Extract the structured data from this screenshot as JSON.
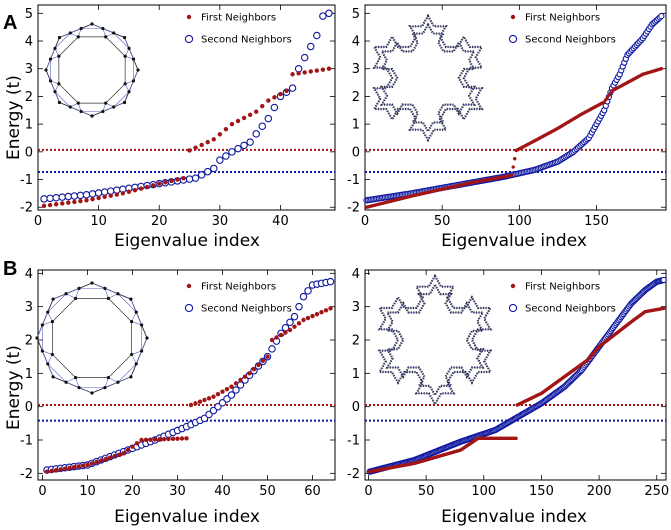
{
  "figure": {
    "panel_labels": [
      "A",
      "B"
    ]
  },
  "styles": {
    "first_color": "#a31515",
    "second_color": "#0f18a0",
    "inset_edge_color": "#5560c0",
    "node_color": "#111111"
  },
  "chart_data": [
    {
      "id": "A-left",
      "type": "scatter",
      "xlabel": "Eigenvalue index",
      "ylabel": "Energy (t)",
      "xlim": [
        0,
        49
      ],
      "ylim": [
        -2.1,
        5.3
      ],
      "xticks": [
        0,
        10,
        20,
        30,
        40
      ],
      "yticks": [
        -2,
        -1,
        0,
        1,
        2,
        3,
        4,
        5
      ],
      "legend": [
        "First Neighbors",
        "Second Neighbors"
      ],
      "reference_lines": [
        0.07,
        -0.73
      ],
      "n": 48,
      "series": [
        {
          "name": "First Neighbors",
          "marker": "filled",
          "knots": [
            [
              1,
              -1.95
            ],
            [
              8,
              -1.75
            ],
            [
              14,
              -1.5
            ],
            [
              20,
              -1.15
            ],
            [
              24,
              -0.95
            ],
            [
              25,
              0.05
            ],
            [
              29,
              0.45
            ],
            [
              32,
              1.0
            ],
            [
              36,
              1.45
            ],
            [
              38,
              1.85
            ],
            [
              41,
              2.2
            ],
            [
              42,
              2.8
            ],
            [
              48,
              3.0
            ]
          ]
        },
        {
          "name": "Second Neighbors",
          "marker": "open",
          "knots": [
            [
              1,
              -1.7
            ],
            [
              8,
              -1.55
            ],
            [
              14,
              -1.35
            ],
            [
              20,
              -1.15
            ],
            [
              26,
              -0.95
            ],
            [
              29,
              -0.6
            ],
            [
              30,
              -0.3
            ],
            [
              32,
              0.0
            ],
            [
              35,
              0.35
            ],
            [
              36,
              0.65
            ],
            [
              38,
              1.2
            ],
            [
              40,
              2.0
            ],
            [
              42,
              2.3
            ],
            [
              43,
              3.0
            ],
            [
              46,
              4.2
            ],
            [
              47,
              4.9
            ],
            [
              48,
              5.0
            ]
          ]
        }
      ]
    },
    {
      "id": "A-right",
      "type": "scatter",
      "xlabel": "Eigenvalue index",
      "ylabel": "",
      "xlim": [
        0,
        195
      ],
      "ylim": [
        -2.1,
        5.3
      ],
      "xticks": [
        0,
        50,
        100,
        150
      ],
      "yticks": [
        -2,
        -1,
        0,
        1,
        2,
        3,
        4,
        5
      ],
      "legend": [
        "First Neighbors",
        "Second Neighbors"
      ],
      "reference_lines": [
        0.07,
        -0.73
      ],
      "n": 192,
      "series": [
        {
          "name": "First Neighbors",
          "marker": "filled",
          "knots": [
            [
              1,
              -2.0
            ],
            [
              30,
              -1.6
            ],
            [
              50,
              -1.35
            ],
            [
              70,
              -1.1
            ],
            [
              95,
              -0.85
            ],
            [
              98,
              0.05
            ],
            [
              110,
              0.4
            ],
            [
              125,
              0.85
            ],
            [
              140,
              1.35
            ],
            [
              155,
              1.8
            ],
            [
              160,
              2.2
            ],
            [
              170,
              2.5
            ],
            [
              180,
              2.8
            ],
            [
              192,
              3.0
            ]
          ]
        },
        {
          "name": "Second Neighbors",
          "marker": "open",
          "knots": [
            [
              1,
              -1.75
            ],
            [
              30,
              -1.5
            ],
            [
              60,
              -1.2
            ],
            [
              90,
              -0.9
            ],
            [
              110,
              -0.65
            ],
            [
              125,
              -0.35
            ],
            [
              135,
              0.0
            ],
            [
              145,
              0.5
            ],
            [
              155,
              1.5
            ],
            [
              160,
              2.3
            ],
            [
              165,
              2.8
            ],
            [
              170,
              3.5
            ],
            [
              180,
              4.1
            ],
            [
              186,
              4.6
            ],
            [
              192,
              4.9
            ]
          ]
        }
      ]
    },
    {
      "id": "B-left",
      "type": "scatter",
      "xlabel": "Eigenvalue index",
      "ylabel": "Energy (t)",
      "xlim": [
        -1,
        65
      ],
      "ylim": [
        -2.2,
        4.1
      ],
      "xticks": [
        0,
        10,
        20,
        30,
        40,
        50,
        60
      ],
      "yticks": [
        -2,
        -1,
        0,
        1,
        2,
        3,
        4
      ],
      "legend": [
        "First Neighbors",
        "Second Neighbors"
      ],
      "reference_lines": [
        0.05,
        -0.42
      ],
      "n": 64,
      "series": [
        {
          "name": "First Neighbors",
          "marker": "filled",
          "knots": [
            [
              1,
              -1.95
            ],
            [
              10,
              -1.75
            ],
            [
              18,
              -1.4
            ],
            [
              22,
              -1.0
            ],
            [
              32,
              -0.95
            ],
            [
              33,
              0.05
            ],
            [
              38,
              0.3
            ],
            [
              42,
              0.6
            ],
            [
              46,
              1.0
            ],
            [
              50,
              1.5
            ],
            [
              51,
              2.0
            ],
            [
              55,
              2.3
            ],
            [
              58,
              2.6
            ],
            [
              64,
              2.95
            ]
          ]
        },
        {
          "name": "Second Neighbors",
          "marker": "open",
          "knots": [
            [
              1,
              -1.9
            ],
            [
              10,
              -1.75
            ],
            [
              18,
              -1.35
            ],
            [
              25,
              -1.0
            ],
            [
              32,
              -0.6
            ],
            [
              36,
              -0.35
            ],
            [
              39,
              0.0
            ],
            [
              42,
              0.35
            ],
            [
              45,
              0.8
            ],
            [
              50,
              1.5
            ],
            [
              53,
              2.2
            ],
            [
              56,
              2.7
            ],
            [
              58,
              3.3
            ],
            [
              60,
              3.65
            ],
            [
              64,
              3.75
            ]
          ]
        }
      ]
    },
    {
      "id": "B-right",
      "type": "scatter",
      "xlabel": "Eigenvalue index",
      "ylabel": "",
      "xlim": [
        -3,
        258
      ],
      "ylim": [
        -2.2,
        4.1
      ],
      "xticks": [
        0,
        50,
        100,
        150,
        200,
        250
      ],
      "yticks": [
        -2,
        -1,
        0,
        1,
        2,
        3,
        4
      ],
      "legend": [
        "First Neighbors",
        "Second Neighbors"
      ],
      "reference_lines": [
        0.05,
        -0.42
      ],
      "n": 256,
      "series": [
        {
          "name": "First Neighbors",
          "marker": "filled",
          "knots": [
            [
              1,
              -1.95
            ],
            [
              40,
              -1.7
            ],
            [
              80,
              -1.3
            ],
            [
              95,
              -0.95
            ],
            [
              128,
              -0.95
            ],
            [
              129,
              0.05
            ],
            [
              150,
              0.4
            ],
            [
              170,
              0.9
            ],
            [
              190,
              1.4
            ],
            [
              200,
              1.8
            ],
            [
              215,
              2.2
            ],
            [
              230,
              2.6
            ],
            [
              240,
              2.85
            ],
            [
              256,
              2.95
            ]
          ]
        },
        {
          "name": "Second Neighbors",
          "marker": "open",
          "knots": [
            [
              1,
              -1.95
            ],
            [
              40,
              -1.6
            ],
            [
              80,
              -1.05
            ],
            [
              110,
              -0.7
            ],
            [
              130,
              -0.3
            ],
            [
              150,
              0.1
            ],
            [
              170,
              0.6
            ],
            [
              185,
              1.1
            ],
            [
              200,
              1.8
            ],
            [
              215,
              2.5
            ],
            [
              228,
              3.1
            ],
            [
              240,
              3.5
            ],
            [
              250,
              3.75
            ],
            [
              256,
              3.8
            ]
          ]
        }
      ]
    }
  ]
}
